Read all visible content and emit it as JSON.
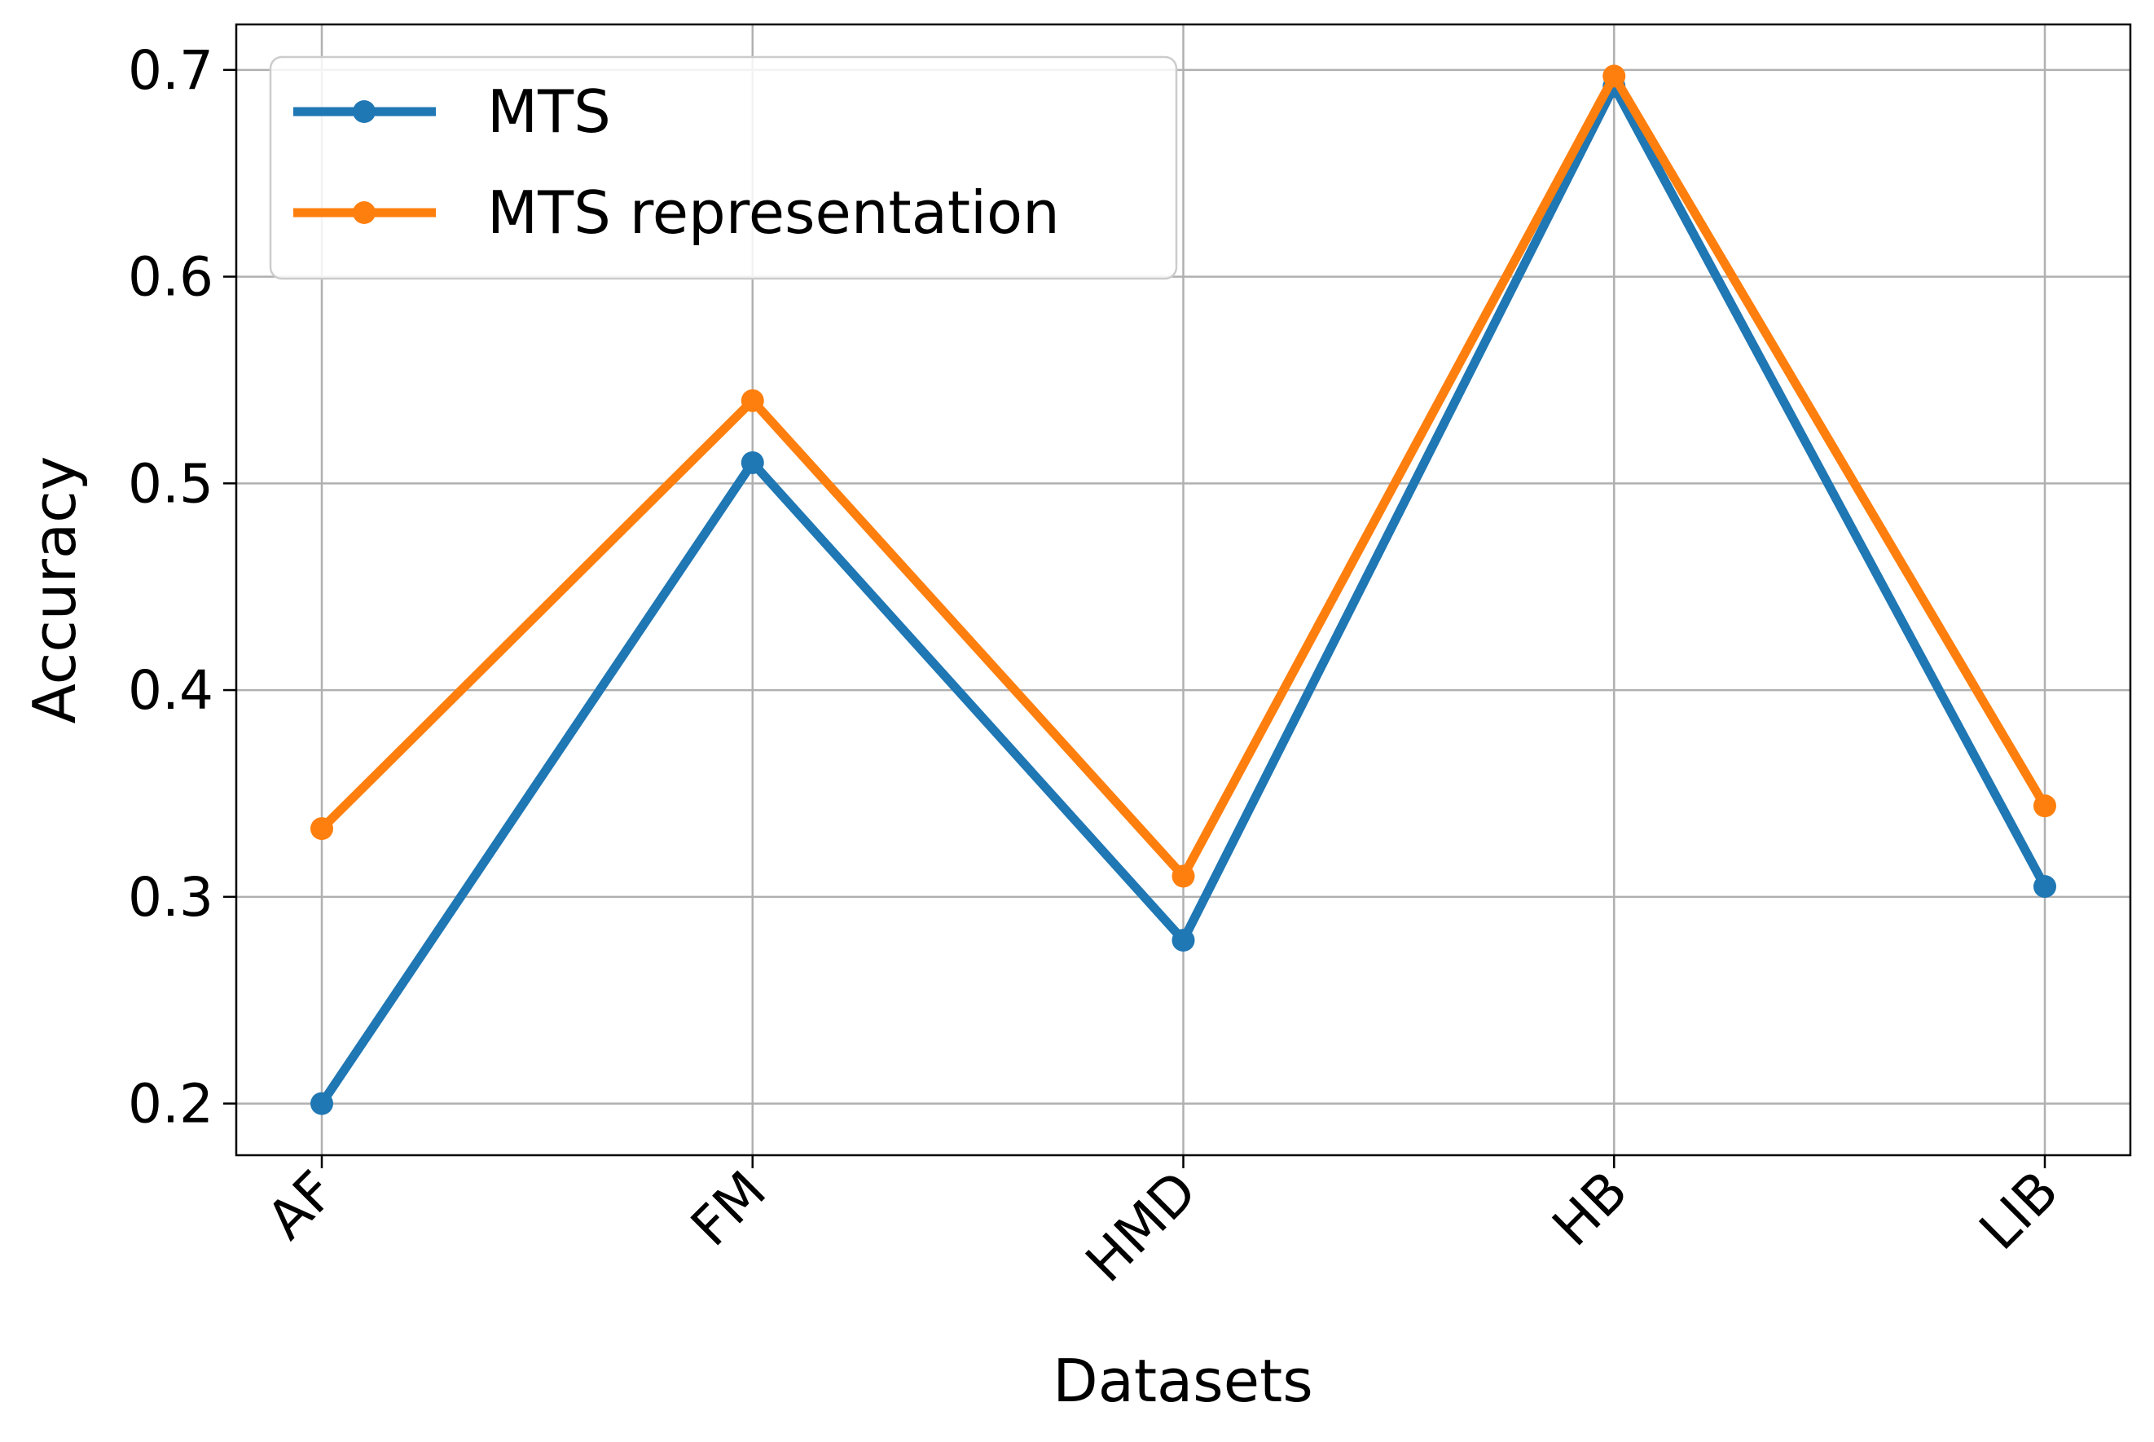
{
  "chart_data": {
    "type": "line",
    "title": "",
    "xlabel": "Datasets",
    "ylabel": "Accuracy",
    "categories": [
      "AF",
      "FM",
      "HMD",
      "HB",
      "LIB"
    ],
    "y_ticks": [
      "0.2",
      "0.3",
      "0.4",
      "0.5",
      "0.6",
      "0.7"
    ],
    "ylim": [
      0.175,
      0.722
    ],
    "grid": true,
    "legend_position": "top-left",
    "series": [
      {
        "name": "MTS",
        "color": "#1f77b4",
        "values": [
          0.2,
          0.51,
          0.279,
          0.692,
          0.305
        ]
      },
      {
        "name": "MTS representation",
        "color": "#ff7f0e",
        "values": [
          0.333,
          0.54,
          0.31,
          0.697,
          0.344
        ]
      }
    ]
  }
}
